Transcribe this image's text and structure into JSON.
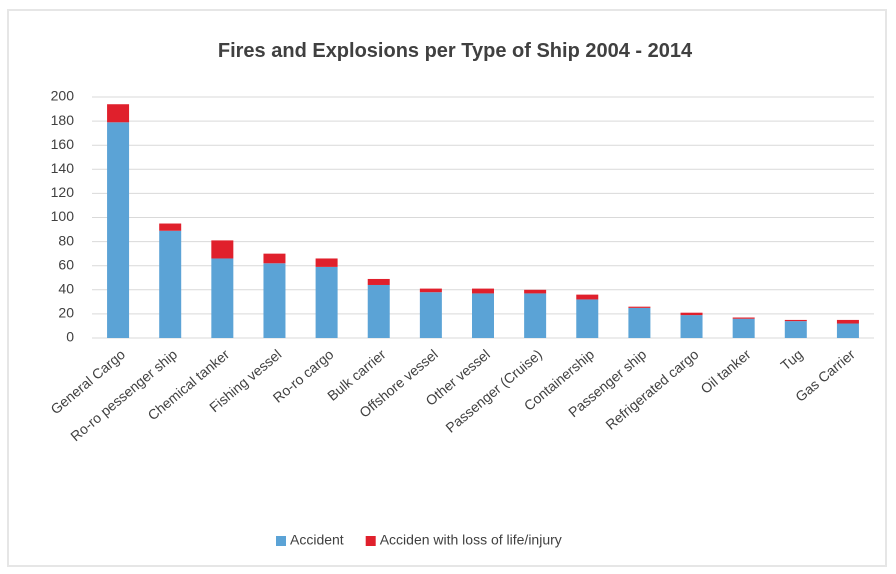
{
  "chart_data": {
    "type": "stacked_bar",
    "title": "Fires and Explosions per Type of Ship 2004 - 2014",
    "categories": [
      "General Cargo",
      "Ro-ro pessenger ship",
      "Chemical tanker",
      "Fishing vessel",
      "Ro-ro cargo",
      "Bulk carrier",
      "Offshore vessel",
      "Other vessel",
      "Passenger (Cruise)",
      "Containership",
      "Passenger ship",
      "Refrigerated cargo",
      "Oil tanker",
      "Tug",
      "Gas Carrier"
    ],
    "series": [
      {
        "name": "Accident",
        "color": "#5ba3d6",
        "values": [
          179,
          89,
          66,
          62,
          59,
          44,
          38,
          37,
          37,
          32,
          25,
          19,
          16,
          14,
          12
        ]
      },
      {
        "name": "Acciden with loss of life/injury",
        "color": "#e0202c",
        "values": [
          15,
          6,
          15,
          8,
          7,
          5,
          3,
          4,
          3,
          4,
          1,
          2,
          1,
          1,
          3
        ]
      }
    ],
    "ylim": [
      0,
      200
    ],
    "yticks": [
      0,
      20,
      40,
      60,
      80,
      100,
      120,
      140,
      160,
      180,
      200
    ],
    "grid": true,
    "legend": "bottom"
  }
}
